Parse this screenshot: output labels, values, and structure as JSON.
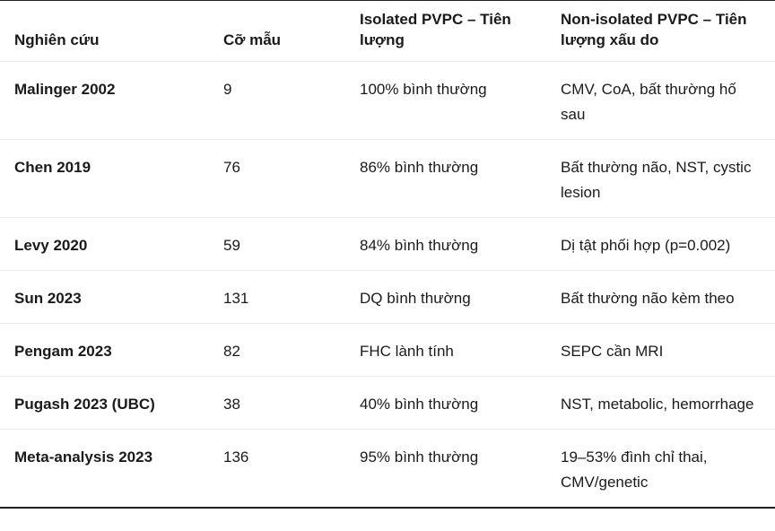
{
  "table": {
    "columns": {
      "study": "Nghiên cứu",
      "sample_size": "Cỡ mẫu",
      "isolated": "Isolated PVPC – Tiên lượng",
      "non_isolated": "Non-isolated PVPC – Tiên lượng xấu do"
    },
    "rows": [
      {
        "study": "Malinger 2002",
        "sample_size": "9",
        "isolated": "100% bình thường",
        "non_isolated": "CMV, CoA, bất thường hố sau"
      },
      {
        "study": "Chen 2019",
        "sample_size": "76",
        "isolated": "86% bình thường",
        "non_isolated": "Bất thường não, NST, cystic lesion"
      },
      {
        "study": "Levy 2020",
        "sample_size": "59",
        "isolated": "84% bình thường",
        "non_isolated": "Dị tật phối hợp (p=0.002)"
      },
      {
        "study": "Sun 2023",
        "sample_size": "131",
        "isolated": "DQ bình thường",
        "non_isolated": "Bất thường não kèm theo"
      },
      {
        "study": "Pengam 2023",
        "sample_size": "82",
        "isolated": "FHC lành tính",
        "non_isolated": "SEPC cần MRI"
      },
      {
        "study": "Pugash 2023 (UBC)",
        "sample_size": "38",
        "isolated": "40% bình thường",
        "non_isolated": "NST, metabolic, hemorrhage"
      },
      {
        "study": "Meta-analysis 2023",
        "sample_size": "136",
        "isolated": "95% bình thường",
        "non_isolated": "19–53% đình chỉ thai, CMV/genetic"
      }
    ]
  },
  "colors": {
    "text": "#1a1a1a",
    "row_divider": "#ececec",
    "outer_border": "#1f1f1f",
    "background": "#ffffff"
  }
}
